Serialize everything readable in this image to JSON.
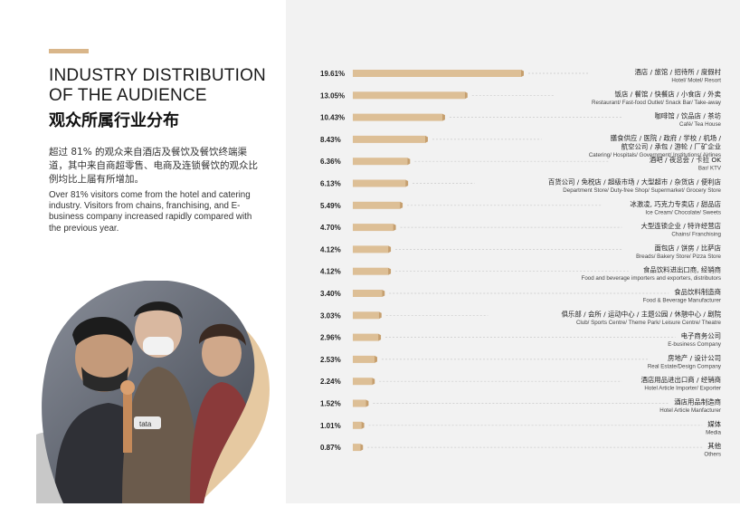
{
  "heading": {
    "title_en_line1": "INDUSTRY DISTRIBUTION",
    "title_en_line2": "OF THE AUDIENCE",
    "title_zh": "观众所属行业分布",
    "desc_zh": "超过 81% 的观众来自酒店及餐饮及餐饮终端渠道，其中来自商超零售、电商及连锁餐饮的观众比例均比上届有所增加。",
    "desc_en": "Over 81% visitors come from the hotel and catering industry. Visitors from chains, franchising, and E-business company increased rapidly compared with the previous year."
  },
  "photo": {
    "sign_text": "tata"
  },
  "colors": {
    "accent": "#d9b68a",
    "bar_light": "#ddbf96",
    "bar_dark": "#c69f6e",
    "panel": "#f2f2f2"
  },
  "chart_data": {
    "type": "bar",
    "orientation": "horizontal",
    "grid": false,
    "categories": [
      {
        "zh": "酒店 / 旅馆 / 招待所 / 度假村",
        "en": "Hotel/ Motel/ Resort"
      },
      {
        "zh": "饭店 / 餐馆 / 快餐店 / 小食店 / 外卖",
        "en": "Restaurant/ Fast-food Outlet/ Snack Bar/ Take-away"
      },
      {
        "zh": "咖啡馆 / 饮品店 / 茶坊",
        "en": "Café/ Tea House"
      },
      {
        "zh": "膳食供应 / 医院 / 政府 / 学校 / 机场 /",
        "zh2": "航空公司 / 承包 / 游轮 / 厂矿企业",
        "en": "Catering/ Hospitals/ Government/ Institutions/ Airlines"
      },
      {
        "zh": "酒吧 / 夜总会 / 卡拉 OK",
        "en": "Bar/ KTV"
      },
      {
        "zh": "百货公司 / 免税店 / 超级市场 / 大型超市 / 杂货店 / 便利店",
        "en": "Department Store/ Duty-free Shop/ Supermarket/ Grocery Store"
      },
      {
        "zh": "冰激凌, 巧克力专卖店 / 甜品店",
        "en": "Ice Cream/ Chocolate/ Sweets"
      },
      {
        "zh": "大型连锁企业 / 特许经营店",
        "en": "Chains/ Franchising"
      },
      {
        "zh": "面包店 / 饼房 / 比萨店",
        "en": "Breads/ Bakery Store/ Pizza Store"
      },
      {
        "zh": "食品饮料进出口商, 经销商",
        "en": "Food and beverage importers and exporters, distributors"
      },
      {
        "zh": "食品饮料制造商",
        "en": "Food & Beverage Manufacturer"
      },
      {
        "zh": "俱乐部 / 会所 / 运动中心 / 主题公园 / 休憩中心 / 剧院",
        "en": "Club/ Sports Centre/ Theme Park/ Leisure Centre/ Theatre"
      },
      {
        "zh": "电子商务公司",
        "en": "E-business Company"
      },
      {
        "zh": "房地产 / 设计公司",
        "en": "Real Estate/Design Company"
      },
      {
        "zh": "酒店用品进出口商 / 经销商",
        "en": "Hotel Article Importer/ Exporter"
      },
      {
        "zh": "酒店用品制造商",
        "en": "Hotel Article Manfacturer"
      },
      {
        "zh": "媒体",
        "en": "Media"
      },
      {
        "zh": "其他",
        "en": "Others"
      }
    ],
    "values": [
      19.61,
      13.05,
      10.43,
      8.43,
      6.36,
      6.13,
      5.49,
      4.7,
      4.12,
      4.12,
      3.4,
      3.03,
      2.96,
      2.53,
      2.24,
      1.52,
      1.01,
      0.87
    ],
    "labels": [
      "19.61%",
      "13.05%",
      "10.43%",
      "8.43%",
      "6.36%",
      "6.13%",
      "5.49%",
      "4.70%",
      "4.12%",
      "4.12%",
      "3.40%",
      "3.03%",
      "2.96%",
      "2.53%",
      "2.24%",
      "1.52%",
      "1.01%",
      "0.87%"
    ],
    "unit": "%"
  }
}
